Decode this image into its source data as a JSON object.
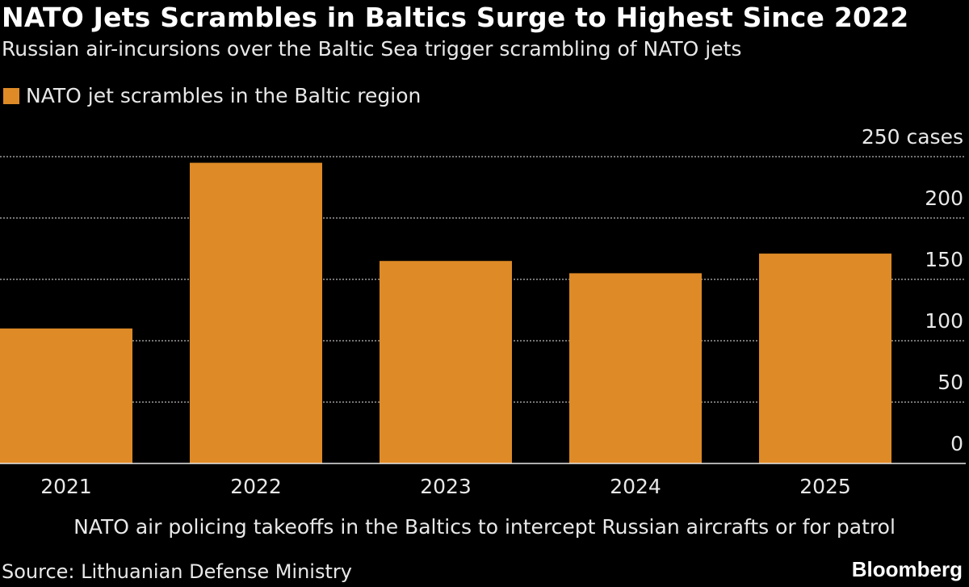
{
  "title": "NATO Jets Scrambles in Baltics Surge to Highest Since 2022",
  "subtitle": "Russian air-incursions over the Baltic Sea trigger scrambling of NATO jets",
  "note": "NATO air policing takeoffs in the Baltics to intercept Russian aircrafts or for patrol",
  "source": "Source: Lithuanian Defense Ministry",
  "brand": "Bloomberg",
  "chart_data": {
    "type": "bar",
    "categories": [
      "2021",
      "2022",
      "2023",
      "2024",
      "2025"
    ],
    "series": [
      {
        "name": "NATO jet scrambles in the Baltic region",
        "values": [
          110,
          245,
          165,
          155,
          171
        ],
        "color": "#de8a26"
      }
    ],
    "ylim": [
      0,
      250
    ],
    "yticks": [
      0,
      50,
      100,
      150,
      200,
      250
    ],
    "ytick_labels": [
      "0",
      "50",
      "100",
      "150",
      "200",
      "250 cases"
    ],
    "grid": true,
    "legend_position": "top-left",
    "y_axis_side": "right"
  }
}
